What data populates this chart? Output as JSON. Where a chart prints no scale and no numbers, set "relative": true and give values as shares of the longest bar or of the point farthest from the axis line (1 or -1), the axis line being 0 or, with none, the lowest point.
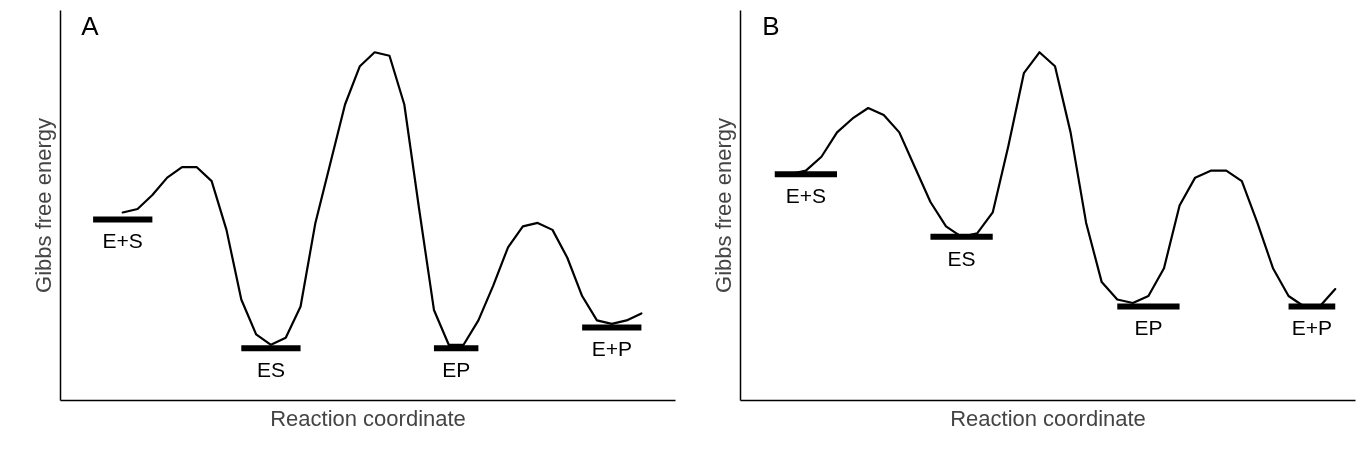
{
  "chart_data": [
    {
      "type": "line",
      "title": "A",
      "xlabel": "Reaction coordinate",
      "ylabel": "Gibbs free energy",
      "relative": true,
      "categories": [
        null,
        null,
        null,
        null,
        null,
        null,
        null,
        null,
        null,
        null,
        null,
        null,
        null,
        null,
        null,
        null,
        null,
        null,
        null,
        null,
        null,
        null,
        null,
        null,
        null,
        null,
        null,
        null,
        null,
        null,
        null,
        null,
        null,
        null,
        null,
        null,
        null,
        null,
        null
      ],
      "series": [
        {
          "color": "#000000",
          "values": [
            null,
            null,
            0.54,
            0.55,
            0.59,
            0.64,
            0.67,
            0.67,
            0.63,
            0.49,
            0.29,
            0.19,
            0.16,
            0.18,
            0.27,
            0.51,
            0.68,
            0.85,
            0.96,
            1.0,
            0.99,
            0.85,
            0.55,
            0.26,
            0.16,
            0.16,
            0.23,
            0.33,
            0.44,
            0.5,
            0.51,
            0.49,
            0.41,
            0.3,
            0.23,
            0.22,
            0.23,
            0.25,
            null
          ]
        },
        {
          "name": "E+S",
          "color": "#000000",
          "values": [
            0.52,
            0.52,
            0.52,
            0.52,
            0.52,
            null,
            null,
            null,
            null,
            null,
            null,
            null,
            null,
            null,
            null,
            null,
            null,
            null,
            null,
            null,
            null,
            null,
            null,
            null,
            null,
            null,
            null,
            null,
            null,
            null,
            null,
            null,
            null,
            null,
            null,
            null,
            null,
            null,
            null
          ]
        },
        {
          "name": "ES",
          "color": "#000000",
          "values": [
            null,
            null,
            null,
            null,
            null,
            null,
            null,
            null,
            null,
            null,
            0.15,
            0.15,
            0.15,
            0.15,
            0.15,
            null,
            null,
            null,
            null,
            null,
            null,
            null,
            null,
            null,
            null,
            null,
            null,
            null,
            null,
            null,
            null,
            null,
            null,
            null,
            null,
            null,
            null,
            null,
            null
          ]
        },
        {
          "name": "EP",
          "color": "#000000",
          "values": [
            null,
            null,
            null,
            null,
            null,
            null,
            null,
            null,
            null,
            null,
            null,
            null,
            null,
            null,
            null,
            null,
            null,
            null,
            null,
            null,
            null,
            null,
            null,
            0.15,
            0.15,
            0.15,
            0.15,
            null,
            null,
            null,
            null,
            null,
            null,
            null,
            null,
            null,
            null,
            null,
            null
          ]
        },
        {
          "name": "E+P",
          "color": "#000000",
          "values": [
            null,
            null,
            null,
            null,
            null,
            null,
            null,
            null,
            null,
            null,
            null,
            null,
            null,
            null,
            null,
            null,
            null,
            null,
            null,
            null,
            null,
            null,
            null,
            null,
            null,
            null,
            null,
            null,
            null,
            null,
            null,
            null,
            null,
            0.21,
            0.21,
            0.21,
            0.21,
            0.21,
            null
          ]
        }
      ]
    },
    {
      "type": "line",
      "title": "B",
      "xlabel": "Reaction coordinate",
      "ylabel": "Gibbs free energy",
      "relative": true,
      "categories": [
        null,
        null,
        null,
        null,
        null,
        null,
        null,
        null,
        null,
        null,
        null,
        null,
        null,
        null,
        null,
        null,
        null,
        null,
        null,
        null,
        null,
        null,
        null,
        null,
        null,
        null,
        null,
        null,
        null,
        null,
        null,
        null,
        null,
        null,
        null,
        null,
        null
      ],
      "series": [
        {
          "color": "#000000",
          "values": [
            null,
            0.65,
            0.66,
            0.7,
            0.77,
            0.81,
            0.84,
            0.82,
            0.77,
            0.67,
            0.57,
            0.5,
            0.47,
            0.48,
            0.54,
            0.73,
            0.94,
            1.0,
            0.96,
            0.77,
            0.51,
            0.34,
            0.29,
            0.28,
            0.3,
            0.38,
            0.56,
            0.64,
            0.66,
            0.66,
            0.63,
            0.51,
            0.38,
            0.3,
            0.27,
            0.27,
            0.32
          ]
        },
        {
          "name": "E+S",
          "color": "#000000",
          "values": [
            0.65,
            0.65,
            0.65,
            0.65,
            0.65,
            null,
            null,
            null,
            null,
            null,
            null,
            null,
            null,
            null,
            null,
            null,
            null,
            null,
            null,
            null,
            null,
            null,
            null,
            null,
            null,
            null,
            null,
            null,
            null,
            null,
            null,
            null,
            null,
            null,
            null,
            null,
            null
          ]
        },
        {
          "name": "ES",
          "color": "#000000",
          "values": [
            null,
            null,
            null,
            null,
            null,
            null,
            null,
            null,
            null,
            null,
            0.47,
            0.47,
            0.47,
            0.47,
            0.47,
            null,
            null,
            null,
            null,
            null,
            null,
            null,
            null,
            null,
            null,
            null,
            null,
            null,
            null,
            null,
            null,
            null,
            null,
            null,
            null,
            null,
            null
          ]
        },
        {
          "name": "EP",
          "color": "#000000",
          "values": [
            null,
            null,
            null,
            null,
            null,
            null,
            null,
            null,
            null,
            null,
            null,
            null,
            null,
            null,
            null,
            null,
            null,
            null,
            null,
            null,
            null,
            null,
            0.27,
            0.27,
            0.27,
            0.27,
            0.27,
            null,
            null,
            null,
            null,
            null,
            null,
            null,
            null,
            null,
            null
          ]
        },
        {
          "name": "E+P",
          "color": "#000000",
          "values": [
            null,
            null,
            null,
            null,
            null,
            null,
            null,
            null,
            null,
            null,
            null,
            null,
            null,
            null,
            null,
            null,
            null,
            null,
            null,
            null,
            null,
            null,
            null,
            null,
            null,
            null,
            null,
            null,
            null,
            null,
            null,
            null,
            null,
            0.27,
            0.27,
            0.27,
            0.27
          ]
        }
      ]
    }
  ]
}
